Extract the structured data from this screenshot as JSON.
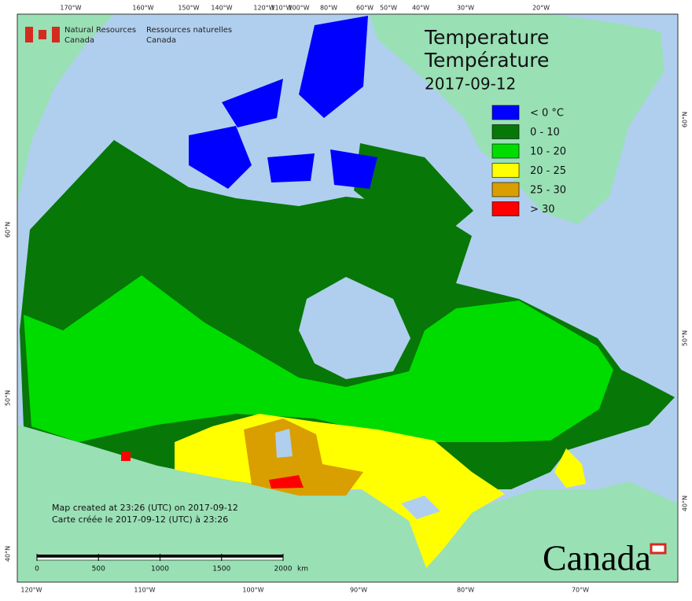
{
  "header": {
    "en_line1": "Natural Resources",
    "en_line2": "Canada",
    "fr_line1": "Ressources naturelles",
    "fr_line2": "Canada"
  },
  "title": {
    "en": "Temperature",
    "fr": "Température",
    "date": "2017-09-12"
  },
  "legend": [
    {
      "label": "< 0 °C",
      "color": "#0000ff"
    },
    {
      "label": "0 - 10",
      "color": "#077707"
    },
    {
      "label": "10 - 20",
      "color": "#00dc00"
    },
    {
      "label": "20 - 25",
      "color": "#ffff00"
    },
    {
      "label": "25 - 30",
      "color": "#d99e00"
    },
    {
      "label": "> 30",
      "color": "#ff0000"
    }
  ],
  "notes": {
    "en": "Map created at 23:26 (UTC) on 2017-09-12",
    "fr": "Carte créée le 2017-09-12 (UTC) à 23:26"
  },
  "scale": {
    "ticks": [
      0,
      500,
      1000,
      1500,
      2000
    ],
    "unit": "km"
  },
  "graticule": {
    "top": [
      "170°W",
      "160°W",
      "150°W",
      "140°W",
      "120°W",
      "110°W",
      "100°W",
      "80°W",
      "60°W",
      "50°W",
      "40°W",
      "30°W",
      "20°W"
    ],
    "bottom": [
      "120°W",
      "110°W",
      "100°W",
      "90°W",
      "80°W",
      "70°W"
    ],
    "left": [
      "60°N",
      "50°N",
      "40°N"
    ],
    "right": [
      "60°N",
      "50°N",
      "40°N"
    ]
  },
  "wordmark": "Canada"
}
